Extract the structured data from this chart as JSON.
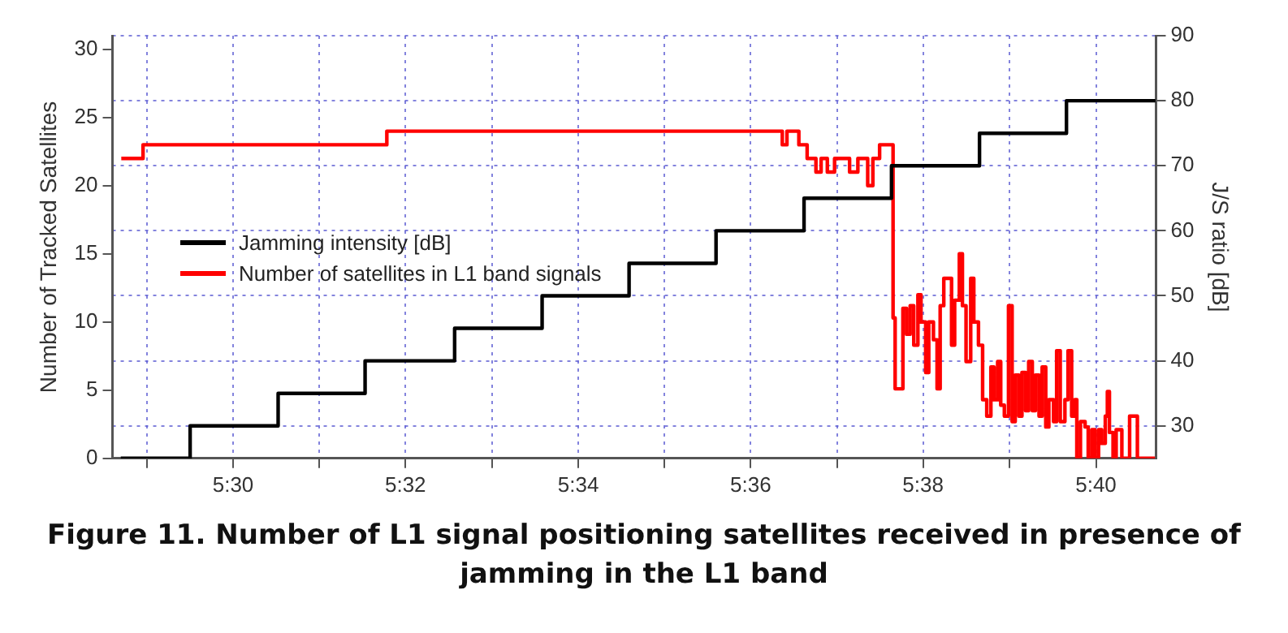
{
  "chart_data": {
    "type": "step",
    "title": "Figure 11. Number of L1 signal positioning satellites received in presence of jamming in the L1 band",
    "ylabel": "Number of Tracked Satellites",
    "y2label": "J/S ratio [dB]",
    "xlim": [
      5.4767,
      5.6783
    ],
    "xticks": [
      {
        "value": 5.4833,
        "label": null
      },
      {
        "value": 5.5,
        "label": "5:30"
      },
      {
        "value": 5.5167,
        "label": null
      },
      {
        "value": 5.5333,
        "label": "5:32"
      },
      {
        "value": 5.55,
        "label": null
      },
      {
        "value": 5.5667,
        "label": "5:34"
      },
      {
        "value": 5.5833,
        "label": null
      },
      {
        "value": 5.6,
        "label": "5:36"
      },
      {
        "value": 5.6167,
        "label": null
      },
      {
        "value": 5.6333,
        "label": "5:38"
      },
      {
        "value": 5.65,
        "label": null
      },
      {
        "value": 5.6667,
        "label": "5:40"
      }
    ],
    "ylim": [
      0,
      31
    ],
    "yticks": [
      0,
      5,
      10,
      15,
      20,
      25,
      30
    ],
    "y2lim": [
      25,
      90
    ],
    "y2ticks": [
      30,
      40,
      50,
      60,
      70,
      80,
      90
    ],
    "grid": true,
    "legend": "left",
    "series": [
      {
        "name": "Jamming intensity [dB]",
        "color": "#000000",
        "axis": "y2",
        "x": [
          5.4783,
          5.4917,
          5.5087,
          5.5255,
          5.5428,
          5.5597,
          5.5765,
          5.5933,
          5.6103,
          5.6272,
          5.6442,
          5.661,
          5.6782
        ],
        "values": [
          25,
          30,
          35,
          40,
          45,
          50,
          55,
          60,
          65,
          70,
          75,
          80,
          80
        ]
      },
      {
        "name": "Number of satellites in L1 band signals",
        "color": "#ff0000",
        "x": [
          5.4784,
          5.4826,
          5.5297,
          5.6061,
          5.607,
          5.6093,
          5.6109,
          5.6126,
          5.6136,
          5.6148,
          5.6162,
          5.6191,
          5.6207,
          5.6226,
          5.6236,
          5.6249,
          5.6272,
          5.6275,
          5.6279,
          5.629,
          5.6294,
          5.6301,
          5.6308,
          5.6315,
          5.6323,
          5.6329,
          5.6338,
          5.6344,
          5.6353,
          5.636,
          5.6366,
          5.6373,
          5.6381,
          5.6388,
          5.6394,
          5.6403,
          5.6409,
          5.6416,
          5.6425,
          5.6431,
          5.644,
          5.6448,
          5.6456,
          5.6464,
          5.647,
          5.6477,
          5.6483,
          5.649,
          5.6498,
          5.6505,
          5.6511,
          5.6518,
          5.6524,
          5.6531,
          5.6537,
          5.6544,
          5.655,
          5.6557,
          5.6563,
          5.657,
          5.6576,
          5.6585,
          5.6591,
          5.6598,
          5.6607,
          5.6613,
          5.662,
          5.6626,
          5.663,
          5.6637,
          5.6646,
          5.6652,
          5.6659,
          5.6665,
          5.6672,
          5.6678,
          5.6685,
          5.6689,
          5.6693,
          5.67,
          5.6706,
          5.6717,
          5.6732,
          5.6741,
          5.6747,
          5.6781
        ],
        "values": [
          22,
          23,
          24,
          23,
          24,
          23,
          22,
          21,
          22,
          21,
          22,
          21,
          22,
          20,
          22,
          23,
          23,
          10.3,
          5.1,
          5.1,
          11,
          9.1,
          11.2,
          8.3,
          12,
          10,
          6.3,
          10,
          8.7,
          5.1,
          11.2,
          13.2,
          13.2,
          8.3,
          11.6,
          15,
          11.2,
          7.1,
          13.2,
          10,
          8.3,
          4.3,
          3.1,
          6.7,
          4.3,
          7.1,
          3.9,
          3.1,
          11.2,
          2.7,
          6.1,
          3.1,
          6.3,
          3.5,
          7.1,
          3.5,
          6.1,
          3.1,
          6.7,
          2.3,
          4.3,
          2.7,
          7.9,
          2.7,
          4.3,
          7.9,
          3.1,
          4.3,
          0,
          2.7,
          2.3,
          0,
          2.1,
          0,
          2.1,
          1.1,
          3.1,
          4.9,
          1.9,
          0,
          2.1,
          0,
          3.1,
          3.1,
          0,
          0
        ]
      }
    ]
  }
}
